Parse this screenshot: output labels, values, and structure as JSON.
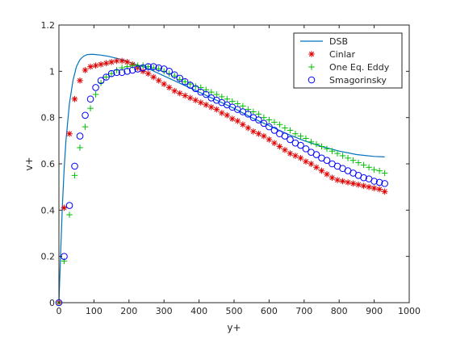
{
  "chart_data": {
    "type": "line",
    "title": "",
    "xlabel": "y+",
    "ylabel": "v+",
    "xlim": [
      0,
      1000
    ],
    "ylim": [
      0,
      1.2
    ],
    "xticks": [
      0,
      100,
      200,
      300,
      400,
      500,
      600,
      700,
      800,
      900,
      1000
    ],
    "yticks": [
      0,
      0.2,
      0.4,
      0.6,
      0.8,
      1.0,
      1.2
    ],
    "xtick_labels": [
      "0",
      "100",
      "200",
      "300",
      "400",
      "500",
      "600",
      "700",
      "800",
      "900",
      "1000"
    ],
    "ytick_labels": [
      "0",
      "0.2",
      "0.4",
      "0.6",
      "0.8",
      "1",
      "1.2"
    ],
    "grid": false,
    "legend_position": "top-right",
    "series": [
      {
        "name": "DSB",
        "style": "line",
        "color": "#0072BD",
        "x": [
          0,
          5,
          10,
          15,
          20,
          30,
          40,
          50,
          60,
          70,
          80,
          90,
          100,
          120,
          140,
          160,
          180,
          200,
          250,
          300,
          350,
          400,
          450,
          500,
          550,
          600,
          650,
          700,
          750,
          800,
          850,
          900,
          930
        ],
        "y": [
          0,
          0.22,
          0.42,
          0.58,
          0.7,
          0.86,
          0.96,
          1.02,
          1.05,
          1.065,
          1.072,
          1.073,
          1.073,
          1.07,
          1.065,
          1.058,
          1.05,
          1.04,
          1.015,
          0.98,
          0.945,
          0.91,
          0.875,
          0.84,
          0.8,
          0.765,
          0.73,
          0.7,
          0.675,
          0.655,
          0.64,
          0.632,
          0.63
        ]
      },
      {
        "name": "Cinlar",
        "style": "marker",
        "marker": "asterisk",
        "color": "#E00000",
        "x": [
          0,
          15,
          30,
          45,
          60,
          75,
          90,
          105,
          120,
          135,
          150,
          165,
          180,
          195,
          210,
          225,
          240,
          255,
          270,
          285,
          300,
          315,
          330,
          345,
          360,
          375,
          390,
          405,
          420,
          435,
          450,
          465,
          480,
          495,
          510,
          525,
          540,
          555,
          570,
          585,
          600,
          615,
          630,
          645,
          660,
          675,
          690,
          705,
          720,
          735,
          750,
          765,
          780,
          795,
          810,
          825,
          840,
          855,
          870,
          885,
          900,
          915,
          930
        ],
        "y": [
          0,
          0.41,
          0.73,
          0.88,
          0.96,
          1.005,
          1.02,
          1.025,
          1.03,
          1.035,
          1.04,
          1.045,
          1.045,
          1.04,
          1.03,
          1.015,
          1.0,
          0.99,
          0.975,
          0.96,
          0.945,
          0.93,
          0.915,
          0.905,
          0.895,
          0.885,
          0.875,
          0.865,
          0.855,
          0.845,
          0.835,
          0.82,
          0.81,
          0.795,
          0.785,
          0.77,
          0.755,
          0.74,
          0.73,
          0.72,
          0.705,
          0.69,
          0.675,
          0.66,
          0.645,
          0.635,
          0.625,
          0.61,
          0.6,
          0.585,
          0.57,
          0.555,
          0.54,
          0.53,
          0.525,
          0.52,
          0.515,
          0.51,
          0.505,
          0.5,
          0.495,
          0.49,
          0.48
        ]
      },
      {
        "name": "One Eq. Eddy",
        "style": "marker",
        "marker": "plus",
        "color": "#00C000",
        "x": [
          0,
          15,
          30,
          45,
          60,
          75,
          90,
          105,
          120,
          135,
          150,
          165,
          180,
          195,
          210,
          225,
          240,
          255,
          270,
          285,
          300,
          315,
          330,
          345,
          360,
          375,
          390,
          405,
          420,
          435,
          450,
          465,
          480,
          495,
          510,
          525,
          540,
          555,
          570,
          585,
          600,
          615,
          630,
          645,
          660,
          675,
          690,
          705,
          720,
          735,
          750,
          765,
          780,
          795,
          810,
          825,
          840,
          855,
          870,
          885,
          900,
          915,
          930
        ],
        "y": [
          0,
          0.18,
          0.38,
          0.55,
          0.67,
          0.76,
          0.84,
          0.9,
          0.95,
          0.975,
          0.99,
          1.005,
          1.015,
          1.02,
          1.025,
          1.025,
          1.025,
          1.02,
          1.015,
          1.01,
          1.0,
          0.99,
          0.98,
          0.965,
          0.955,
          0.945,
          0.935,
          0.93,
          0.92,
          0.91,
          0.9,
          0.89,
          0.88,
          0.87,
          0.86,
          0.85,
          0.835,
          0.825,
          0.815,
          0.8,
          0.79,
          0.78,
          0.77,
          0.755,
          0.745,
          0.73,
          0.72,
          0.71,
          0.695,
          0.685,
          0.675,
          0.665,
          0.655,
          0.645,
          0.635,
          0.625,
          0.615,
          0.605,
          0.595,
          0.585,
          0.575,
          0.57,
          0.56
        ]
      },
      {
        "name": "Smagorinsky",
        "style": "marker",
        "marker": "circle",
        "color": "#0000FF",
        "x": [
          0,
          15,
          30,
          45,
          60,
          75,
          90,
          105,
          120,
          135,
          150,
          165,
          180,
          195,
          210,
          225,
          240,
          255,
          270,
          285,
          300,
          315,
          330,
          345,
          360,
          375,
          390,
          405,
          420,
          435,
          450,
          465,
          480,
          495,
          510,
          525,
          540,
          555,
          570,
          585,
          600,
          615,
          630,
          645,
          660,
          675,
          690,
          705,
          720,
          735,
          750,
          765,
          780,
          795,
          810,
          825,
          840,
          855,
          870,
          885,
          900,
          915,
          930
        ],
        "y": [
          0,
          0.2,
          0.42,
          0.59,
          0.72,
          0.81,
          0.88,
          0.93,
          0.96,
          0.975,
          0.99,
          0.995,
          0.995,
          1.0,
          1.005,
          1.01,
          1.015,
          1.02,
          1.02,
          1.015,
          1.01,
          1.0,
          0.985,
          0.97,
          0.955,
          0.94,
          0.925,
          0.91,
          0.9,
          0.885,
          0.875,
          0.865,
          0.855,
          0.845,
          0.835,
          0.825,
          0.815,
          0.8,
          0.79,
          0.775,
          0.76,
          0.745,
          0.73,
          0.72,
          0.705,
          0.69,
          0.68,
          0.665,
          0.65,
          0.64,
          0.625,
          0.615,
          0.6,
          0.59,
          0.58,
          0.57,
          0.56,
          0.55,
          0.54,
          0.535,
          0.525,
          0.52,
          0.515
        ]
      }
    ]
  }
}
